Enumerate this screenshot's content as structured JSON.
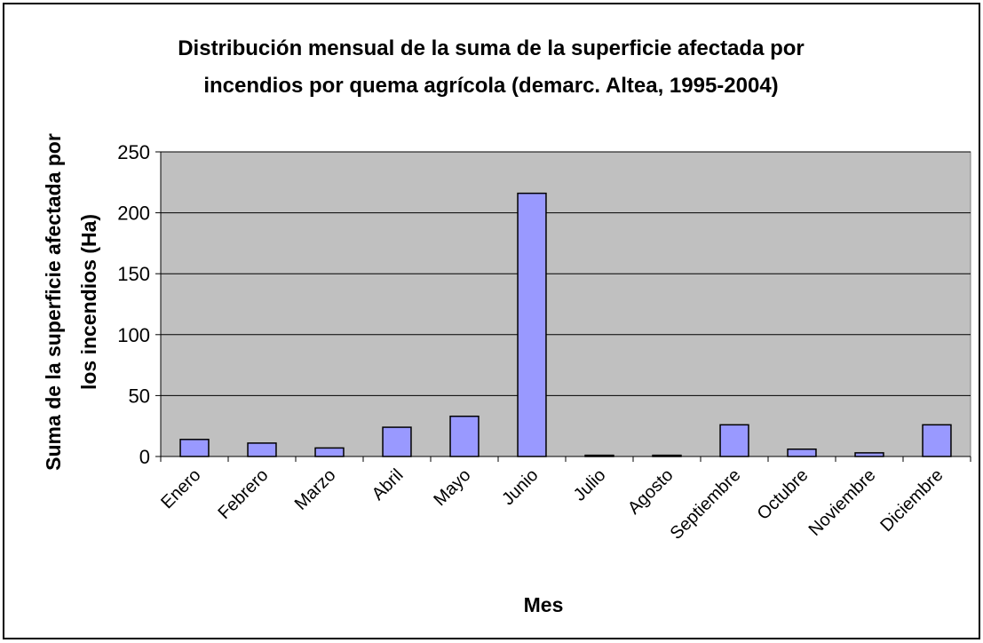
{
  "chart_data": {
    "type": "bar",
    "title": "Distribución mensual de la suma de la superficie afectada por incendios por quema agrícola (demarc. Altea, 1995-2004)",
    "x_label": "Mes",
    "y_label": "Suma de la superficie afectada por los incendios (Ha)",
    "categories": [
      "Enero",
      "Febrero",
      "Marzo",
      "Abril",
      "Mayo",
      "Junio",
      "Julio",
      "Agosto",
      "Septiembre",
      "Octubre",
      "Noviembre",
      "Diciembre"
    ],
    "values": [
      14,
      11,
      7,
      24,
      33,
      216,
      1,
      1,
      26,
      6,
      3,
      26
    ],
    "color": "#9999ff",
    "ylim": [
      0,
      250
    ],
    "yticks": [
      0,
      50,
      100,
      150,
      200,
      250
    ],
    "grid": true
  }
}
